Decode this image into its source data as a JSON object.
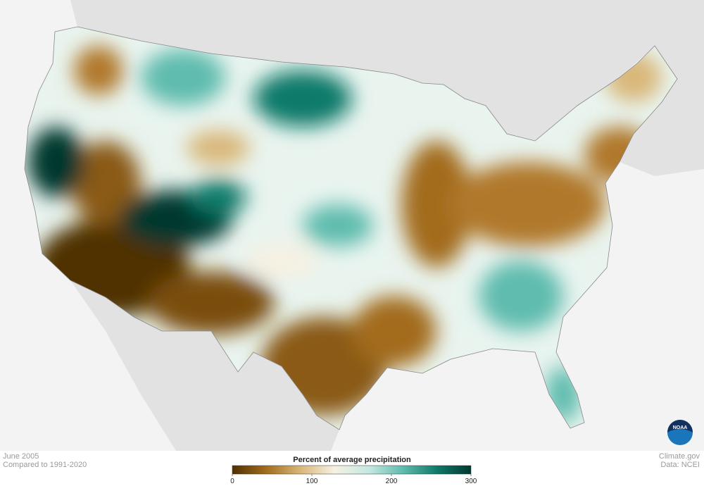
{
  "caption": {
    "date": "June 2005",
    "baseline": "Compared to 1991-2020"
  },
  "legend": {
    "title": "Percent of average precipitation",
    "range": [
      0,
      300
    ],
    "ticks": [
      0,
      100,
      200,
      300
    ],
    "colors": [
      "#4f3003",
      "#a36c1c",
      "#d9b779",
      "#f6f1e2",
      "#c6e8e2",
      "#5fbcae",
      "#0f7a6a",
      "#00392f"
    ]
  },
  "credits": {
    "source": "Climate.gov",
    "data": "Data: NCEI"
  },
  "logo": "NOAA"
}
